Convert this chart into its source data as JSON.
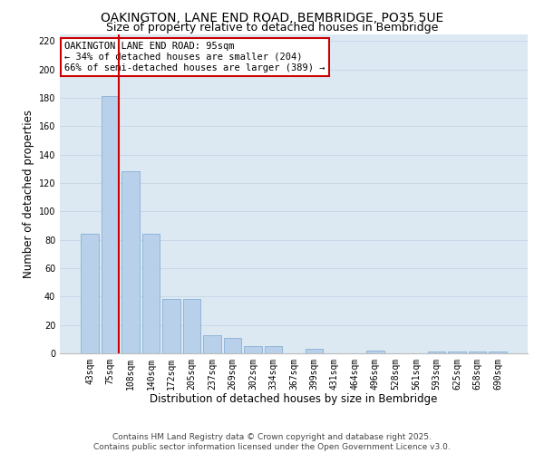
{
  "title": "OAKINGTON, LANE END ROAD, BEMBRIDGE, PO35 5UE",
  "subtitle": "Size of property relative to detached houses in Bembridge",
  "xlabel": "Distribution of detached houses by size in Bembridge",
  "ylabel": "Number of detached properties",
  "bar_labels": [
    "43sqm",
    "75sqm",
    "108sqm",
    "140sqm",
    "172sqm",
    "205sqm",
    "237sqm",
    "269sqm",
    "302sqm",
    "334sqm",
    "367sqm",
    "399sqm",
    "431sqm",
    "464sqm",
    "496sqm",
    "528sqm",
    "561sqm",
    "593sqm",
    "625sqm",
    "658sqm",
    "690sqm"
  ],
  "bar_values": [
    84,
    181,
    128,
    84,
    38,
    38,
    13,
    11,
    5,
    5,
    0,
    3,
    0,
    0,
    2,
    0,
    0,
    1,
    1,
    1,
    1
  ],
  "bar_color": "#b8d0ea",
  "bar_edge_color": "#88afd4",
  "vline_x_index": 1,
  "vline_color": "#cc0000",
  "ylim": [
    0,
    225
  ],
  "yticks": [
    0,
    20,
    40,
    60,
    80,
    100,
    120,
    140,
    160,
    180,
    200,
    220
  ],
  "annotation_title": "OAKINGTON LANE END ROAD: 95sqm",
  "annotation_line1": "← 34% of detached houses are smaller (204)",
  "annotation_line2": "66% of semi-detached houses are larger (389) →",
  "annotation_box_color": "#ffffff",
  "annotation_box_edge": "#cc0000",
  "grid_color": "#c8d8e8",
  "background_color": "#dce9f3",
  "footer_line1": "Contains HM Land Registry data © Crown copyright and database right 2025.",
  "footer_line2": "Contains public sector information licensed under the Open Government Licence v3.0.",
  "title_fontsize": 10,
  "subtitle_fontsize": 9,
  "xlabel_fontsize": 8.5,
  "ylabel_fontsize": 8.5,
  "tick_fontsize": 7,
  "annotation_fontsize": 7.5,
  "footer_fontsize": 6.5
}
